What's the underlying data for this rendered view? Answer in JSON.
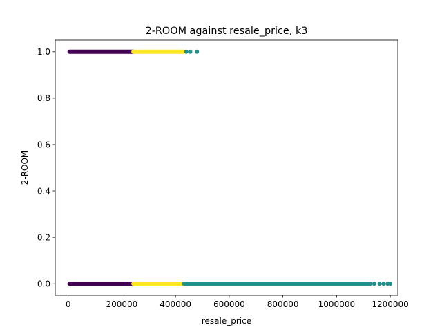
{
  "chart_data": {
    "type": "scatter",
    "title": "2-ROOM against resale_price, k3",
    "xlabel": "resale_price",
    "ylabel": "2-ROOM",
    "xlim": [
      -48000,
      1228000
    ],
    "ylim": [
      -0.05,
      1.05
    ],
    "xticks": [
      {
        "value": 0,
        "label": "0"
      },
      {
        "value": 200000,
        "label": "200000"
      },
      {
        "value": 400000,
        "label": "400000"
      },
      {
        "value": 600000,
        "label": "600000"
      },
      {
        "value": 800000,
        "label": "800000"
      },
      {
        "value": 1000000,
        "label": "1000000"
      },
      {
        "value": 1200000,
        "label": "1200000"
      }
    ],
    "yticks": [
      {
        "value": 0.0,
        "label": "0.0"
      },
      {
        "value": 0.2,
        "label": "0.2"
      },
      {
        "value": 0.4,
        "label": "0.4"
      },
      {
        "value": 0.6,
        "label": "0.6"
      },
      {
        "value": 0.8,
        "label": "0.8"
      },
      {
        "value": 1.0,
        "label": "1.0"
      }
    ],
    "grid": false,
    "legend": "none",
    "series": [
      {
        "color": "#440154",
        "segments": [
          {
            "y": 1,
            "x_start": 5000,
            "x_end": 243000
          },
          {
            "y": 0,
            "x_start": 5000,
            "x_end": 243000
          }
        ],
        "points": []
      },
      {
        "color": "#fde725",
        "segments": [
          {
            "y": 1,
            "x_start": 243000,
            "x_end": 430000
          },
          {
            "y": 0,
            "x_start": 243000,
            "x_end": 432000
          }
        ],
        "points": []
      },
      {
        "color": "#21918c",
        "segments": [
          {
            "y": 0,
            "x_start": 432000,
            "x_end": 1125000
          }
        ],
        "points": [
          {
            "x": 440000,
            "y": 1
          },
          {
            "x": 455000,
            "y": 1
          },
          {
            "x": 480000,
            "y": 1
          },
          {
            "x": 1140000,
            "y": 0
          },
          {
            "x": 1160000,
            "y": 0
          },
          {
            "x": 1175000,
            "y": 0
          },
          {
            "x": 1190000,
            "y": 0
          },
          {
            "x": 1200000,
            "y": 0
          }
        ]
      }
    ]
  }
}
